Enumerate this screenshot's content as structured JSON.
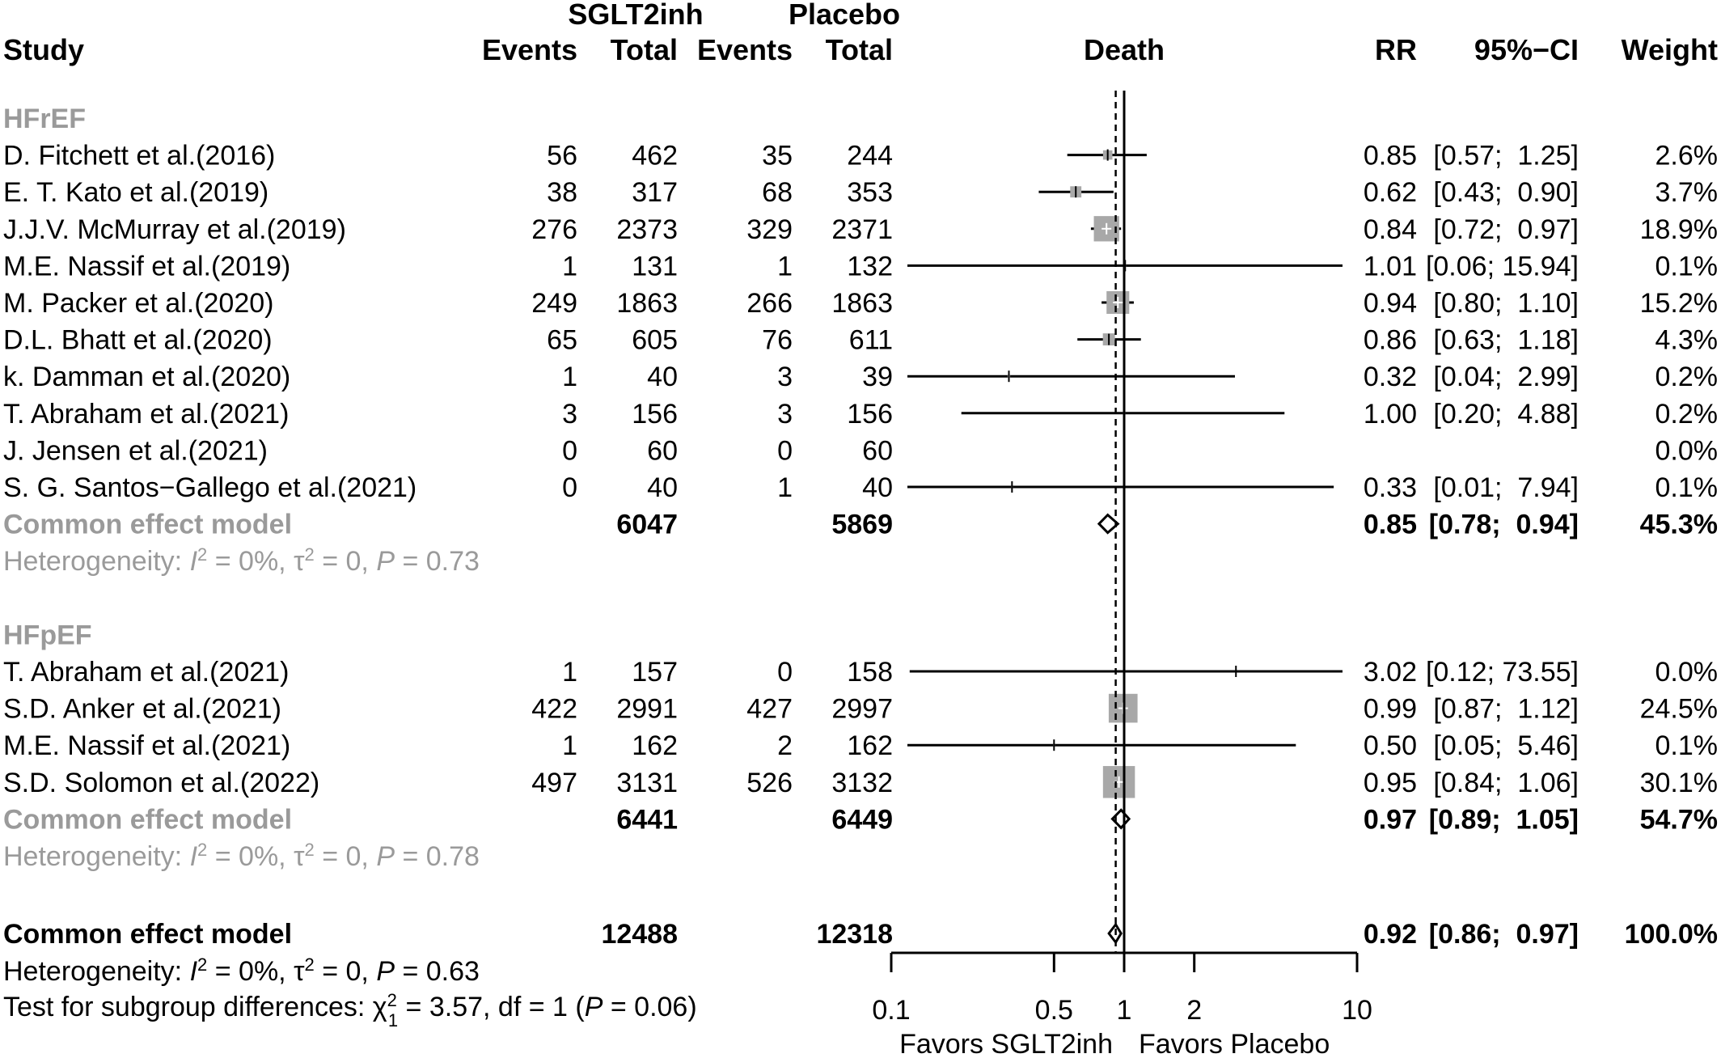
{
  "chart_data": {
    "type": "forest",
    "header": {
      "group1": "SGLT2inh",
      "group2": "Placebo",
      "study": "Study",
      "events": "Events",
      "total": "Total",
      "plot_title": "Death",
      "rr": "RR",
      "ci": "95%−CI",
      "weight": "Weight"
    },
    "x_axis": {
      "scale": "log",
      "ticks": [
        0.1,
        0.5,
        1,
        2,
        10
      ],
      "tick_labels": [
        "0.1",
        "0.5",
        "1",
        "2",
        "10"
      ],
      "label_left": "Favors SGLT2inh",
      "label_right": "Favors Placebo",
      "reference_line": 1,
      "pooled_dashed_line": 0.92
    },
    "subgroups": [
      {
        "name": "HFrEF",
        "studies": [
          {
            "study": "D. Fitchett et al.(2016)",
            "e1": "56",
            "n1": "462",
            "e2": "35",
            "n2": "244",
            "rr": 0.85,
            "lo": 0.57,
            "hi": 1.25,
            "rr_text": "0.85",
            "ci_text": "[0.57;  1.25]",
            "weight": "2.6%",
            "w": 2.6
          },
          {
            "study": "E.  T. Kato et al.(2019)",
            "e1": "38",
            "n1": "317",
            "e2": "68",
            "n2": "353",
            "rr": 0.62,
            "lo": 0.43,
            "hi": 0.9,
            "rr_text": "0.62",
            "ci_text": "[0.43;  0.90]",
            "weight": "3.7%",
            "w": 3.7
          },
          {
            "study": "J.J.V. McMurray et al.(2019)",
            "e1": "276",
            "n1": "2373",
            "e2": "329",
            "n2": "2371",
            "rr": 0.84,
            "lo": 0.72,
            "hi": 0.97,
            "rr_text": "0.84",
            "ci_text": "[0.72;  0.97]",
            "weight": "18.9%",
            "w": 18.9
          },
          {
            "study": "M.E. Nassif et al.(2019)",
            "e1": "1",
            "n1": "131",
            "e2": "1",
            "n2": "132",
            "rr": 1.01,
            "lo": 0.06,
            "hi": 15.94,
            "rr_text": "1.01",
            "ci_text": "[0.06; 15.94]",
            "weight": "0.1%",
            "w": 0.1
          },
          {
            "study": "M. Packer et al.(2020)",
            "e1": "249",
            "n1": "1863",
            "e2": "266",
            "n2": "1863",
            "rr": 0.94,
            "lo": 0.8,
            "hi": 1.1,
            "rr_text": "0.94",
            "ci_text": "[0.80;  1.10]",
            "weight": "15.2%",
            "w": 15.2
          },
          {
            "study": "D.L. Bhatt et al.(2020)",
            "e1": "65",
            "n1": "605",
            "e2": "76",
            "n2": "611",
            "rr": 0.86,
            "lo": 0.63,
            "hi": 1.18,
            "rr_text": "0.86",
            "ci_text": "[0.63;  1.18]",
            "weight": "4.3%",
            "w": 4.3
          },
          {
            "study": "k. Damman et al.(2020)",
            "e1": "1",
            "n1": "40",
            "e2": "3",
            "n2": "39",
            "rr": 0.32,
            "lo": 0.04,
            "hi": 2.99,
            "rr_text": "0.32",
            "ci_text": "[0.04;  2.99]",
            "weight": "0.2%",
            "w": 0.2
          },
          {
            "study": "T. Abraham et al.(2021)",
            "e1": "3",
            "n1": "156",
            "e2": "3",
            "n2": "156",
            "rr": 1.0,
            "lo": 0.2,
            "hi": 4.88,
            "rr_text": "1.00",
            "ci_text": "[0.20;  4.88]",
            "weight": "0.2%",
            "w": 0.2
          },
          {
            "study": "J. Jensen et al.(2021)",
            "e1": "0",
            "n1": "60",
            "e2": "0",
            "n2": "60",
            "rr": null,
            "lo": null,
            "hi": null,
            "rr_text": "",
            "ci_text": "",
            "weight": "0.0%",
            "w": 0.0
          },
          {
            "study": "S. G. Santos−Gallego et al.(2021)",
            "e1": "0",
            "n1": "40",
            "e2": "1",
            "n2": "40",
            "rr": 0.33,
            "lo": 0.01,
            "hi": 7.94,
            "rr_text": "0.33",
            "ci_text": "[0.01;  7.94]",
            "weight": "0.1%",
            "w": 0.1
          }
        ],
        "pooled": {
          "label": "Common effect model",
          "n1": "6047",
          "n2": "5869",
          "rr": 0.85,
          "lo": 0.78,
          "hi": 0.94,
          "rr_text": "0.85",
          "ci_text": "[0.78;  0.94]",
          "weight": "45.3%"
        },
        "heterogeneity": {
          "prefix": "Heterogeneity: ",
          "i2": "I",
          "i2_rest": " = 0%, ",
          "tau": "τ",
          "tau_rest": " = 0, ",
          "p": "P",
          "p_rest": " = 0.73"
        }
      },
      {
        "name": "HFpEF",
        "studies": [
          {
            "study": "T. Abraham et al.(2021)",
            "e1": "1",
            "n1": "157",
            "e2": "0",
            "n2": "158",
            "rr": 3.02,
            "lo": 0.12,
            "hi": 73.55,
            "rr_text": "3.02",
            "ci_text": "[0.12; 73.55]",
            "weight": "0.0%",
            "w": 0.0
          },
          {
            "study": "S.D. Anker et al.(2021)",
            "e1": "422",
            "n1": "2991",
            "e2": "427",
            "n2": "2997",
            "rr": 0.99,
            "lo": 0.87,
            "hi": 1.12,
            "rr_text": "0.99",
            "ci_text": "[0.87;  1.12]",
            "weight": "24.5%",
            "w": 24.5
          },
          {
            "study": "M.E. Nassif et al.(2021)",
            "e1": "1",
            "n1": "162",
            "e2": "2",
            "n2": "162",
            "rr": 0.5,
            "lo": 0.05,
            "hi": 5.46,
            "rr_text": "0.50",
            "ci_text": "[0.05;  5.46]",
            "weight": "0.1%",
            "w": 0.1
          },
          {
            "study": "S.D. Solomon et al.(2022)",
            "e1": "497",
            "n1": "3131",
            "e2": "526",
            "n2": "3132",
            "rr": 0.95,
            "lo": 0.84,
            "hi": 1.06,
            "rr_text": "0.95",
            "ci_text": "[0.84;  1.06]",
            "weight": "30.1%",
            "w": 30.1
          }
        ],
        "pooled": {
          "label": "Common effect model",
          "n1": "6441",
          "n2": "6449",
          "rr": 0.97,
          "lo": 0.89,
          "hi": 1.05,
          "rr_text": "0.97",
          "ci_text": "[0.89;  1.05]",
          "weight": "54.7%"
        },
        "heterogeneity": {
          "prefix": "Heterogeneity: ",
          "i2": "I",
          "i2_rest": " = 0%, ",
          "tau": "τ",
          "tau_rest": " = 0, ",
          "p": "P",
          "p_rest": " = 0.78"
        }
      }
    ],
    "overall": {
      "label": "Common effect model",
      "n1": "12488",
      "n2": "12318",
      "rr": 0.92,
      "lo": 0.86,
      "hi": 0.97,
      "rr_text": "0.92",
      "ci_text": "[0.86;  0.97]",
      "weight": "100.0%",
      "heterogeneity": {
        "prefix": "Heterogeneity: ",
        "i2": "I",
        "i2_rest": " = 0%, ",
        "tau": "τ",
        "tau_rest": " = 0, ",
        "p": "P",
        "p_rest": " = 0.63"
      },
      "subgroup_test": {
        "prefix": "Test for subgroup differences: ",
        "chi": "χ",
        "sup": "2",
        "sub": "1",
        "rest": " = 3.57, df = 1 (",
        "p": "P",
        "p_rest": " = 0.06)"
      }
    },
    "colors": {
      "subgroup_label": "#9a9a9a",
      "square": "#a8a8a8",
      "line": "#000000"
    }
  }
}
